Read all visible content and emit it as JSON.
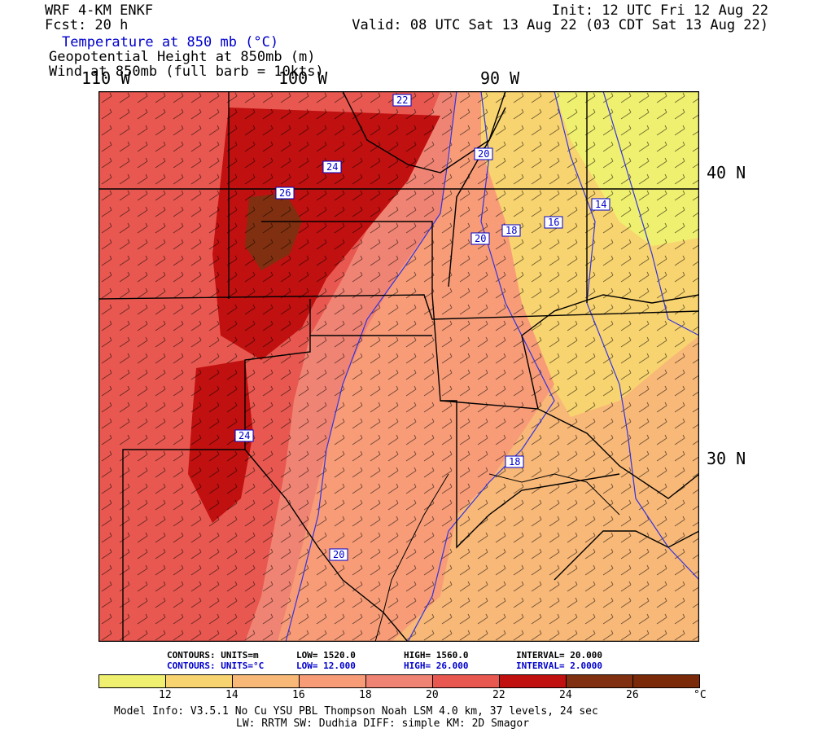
{
  "header": {
    "model": "WRF 4-KM ENKF",
    "init": "Init: 12 UTC Fri 12 Aug 22",
    "fcst": "Fcst:   20 h",
    "valid": "Valid: 08 UTC Sat 13 Aug 22 (03 CDT Sat 13 Aug 22)",
    "field1": "Temperature at 850 mb (°C)",
    "field2": "Geopotential Height at 850mb (m)",
    "field3": "Wind at 850mb (full barb = 10kts)"
  },
  "map": {
    "lon_labels": [
      "110 W",
      "100 W",
      "90 W"
    ],
    "lat_labels": [
      "40 N",
      "30 N"
    ],
    "contour_labels": [
      "22",
      "24",
      "26",
      "20",
      "18",
      "16",
      "14",
      "20",
      "18",
      "24",
      "20"
    ],
    "colors": {
      "c12": "#f0f070",
      "c14": "#f8d470",
      "c16": "#f8b878",
      "c18": "#f89c78",
      "c20": "#f08474",
      "c22": "#e85850",
      "c24": "#c01010",
      "c26": "#803010"
    }
  },
  "contour_info": {
    "height": {
      "label": "CONTOURS:  UNITS=m",
      "low": "LOW=   1520.0",
      "high": "HIGH=   1560.0",
      "interval": "INTERVAL=    20.000"
    },
    "temp": {
      "label": "CONTOURS:  UNITS=°C",
      "low": "LOW=   12.000",
      "high": "HIGH=   26.000",
      "interval": "INTERVAL=    2.0000"
    }
  },
  "colorbar": {
    "ticks": [
      "12",
      "14",
      "16",
      "18",
      "20",
      "22",
      "24",
      "26"
    ],
    "unit": "°C",
    "colors": [
      "#f0f070",
      "#f8d470",
      "#f8b878",
      "#f89c78",
      "#f08474",
      "#e85850",
      "#c01010",
      "#803010",
      "#7a2a08"
    ]
  },
  "footer": {
    "line1": "Model Info: V3.5.1    No Cu    YSU PBL  Thompson     Noah LSM  4.0 km,  37 levels,   24 sec",
    "line2": "LW: RRTM SW: Dudhia  DIFF: simple KM: 2D Smagor"
  }
}
